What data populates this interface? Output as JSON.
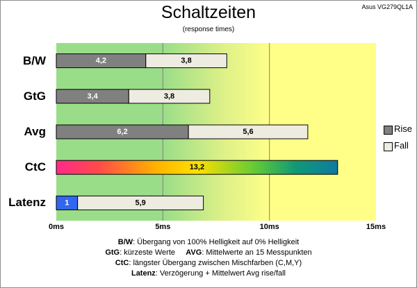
{
  "title": "Schaltzeiten",
  "subtitle": "(response times)",
  "model": "Asus VG279QL1A",
  "notes": [
    {
      "key": "B/W",
      "text": ":  Übergang von 100% Helligkeit auf 0% Helligkeit"
    },
    {
      "key": "GtG",
      "text": ": kürzeste  Werte",
      "key2": "AVG",
      "text2": ": Mittelwerte an 15 Messpunkten"
    },
    {
      "key": "CtC",
      "text": ": längster Übergang zwischen Mischfarben (C,M,Y)"
    },
    {
      "key": "Latenz",
      "text": ": Verzögerung  + Mittelwert Avg rise/fall"
    }
  ],
  "colors": {
    "rise": "#808080",
    "fall": "#eeece1",
    "latenz": "#3366ee",
    "background_left": "#99dd88",
    "background_mid": "#ddf088",
    "background_right": "#ffff88"
  },
  "chart_data": {
    "type": "bar",
    "orientation": "horizontal",
    "stacked": true,
    "categories": [
      "B/W",
      "GtG",
      "Avg",
      "CtC",
      "Latenz"
    ],
    "series": [
      {
        "name": "Rise",
        "values": [
          4.2,
          3.4,
          6.2,
          null,
          null
        ]
      },
      {
        "name": "Fall",
        "values": [
          3.8,
          3.8,
          5.6,
          null,
          null
        ]
      }
    ],
    "extra_bars": [
      {
        "category": "CtC",
        "values": [
          13.2
        ],
        "labels": [
          "13,2"
        ],
        "style": "rainbow-gradient"
      },
      {
        "category": "Latenz",
        "values": [
          1,
          5.9
        ],
        "labels": [
          "1",
          "5,9"
        ],
        "style": "blue+fall"
      }
    ],
    "bar_labels": {
      "B/W": [
        "4,2",
        "3,8"
      ],
      "GtG": [
        "3,4",
        "3,8"
      ],
      "Avg": [
        "6,2",
        "5,6"
      ]
    },
    "x_ticks": [
      "0ms",
      "5ms",
      "10ms",
      "15ms"
    ],
    "x_tick_values": [
      0,
      5,
      10,
      15
    ],
    "xlim": [
      0,
      15
    ],
    "grid": "vertical at 5ms steps",
    "legend": {
      "position": "right",
      "entries": [
        "Rise",
        "Fall"
      ]
    }
  }
}
